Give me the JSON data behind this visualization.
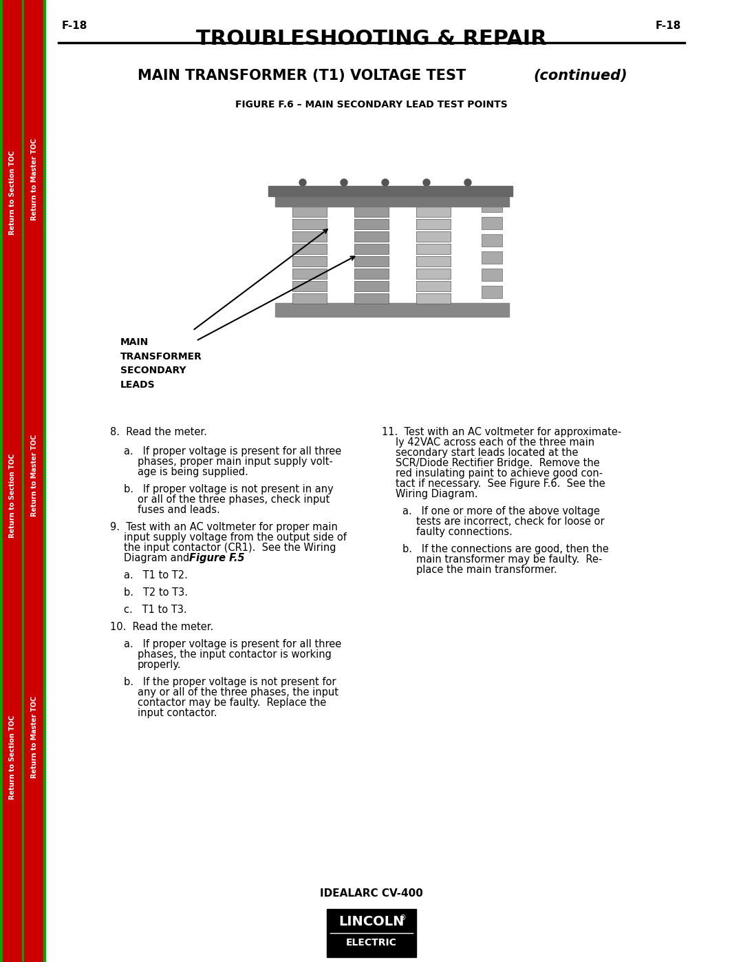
{
  "page_label_left": "F-18",
  "page_label_right": "F-18",
  "header_title": "TROUBLESHOOTING & REPAIR",
  "section_title": "MAIN TRANSFORMER (T1) VOLTAGE TEST",
  "section_title_italic": "(continued)",
  "figure_caption": "FIGURE F.6 – MAIN SECONDARY LEAD TEST POINTS",
  "label_main": "MAIN\nTRANSFORMER\nSECONDARY\nLEADS",
  "sidebar_left1": "Return to Section TOC",
  "sidebar_left2": "Return to Master TOC",
  "sidebar_left3": "Return to Section TOC",
  "sidebar_left4": "Return to Master TOC",
  "sidebar_left5": "Return to Section TOC",
  "sidebar_left6": "Return to Master TOC",
  "sidebar_color": "#cc0000",
  "sidebar_line_color": "#00aa00",
  "bg_color": "#ffffff",
  "text_color": "#000000",
  "body_text_left": [
    "8.  Read the meter.",
    "        a.   If proper voltage is present for all three\n              phases, proper main input supply volt-\n              age is being supplied.",
    "        b.   If proper voltage is not present in any\n              or all of the three phases, check input\n              fuses and leads.",
    "9.  Test with an AC voltmeter for proper main\n     input supply voltage from the output side of\n     the input contactor (CR1).  See the Wiring\n     Diagram and Figure F.5.",
    "        a.   T1 to T2.",
    "        b.   T2 to T3.",
    "        c.   T1 to T3.",
    "10.  Read the meter.",
    "        a.   If proper voltage is present for all three\n              phases, the input contactor is working\n              properly.",
    "        b.   If the proper voltage is not present for\n              any or all of the three phases, the input\n              contactor may be faulty.  Replace the\n              input contactor."
  ],
  "body_text_right": [
    "11.  Test with an AC voltmeter for approximate-\n       ly 42VAC across each of the three main\n       secondary start leads located at the\n       SCR/Diode Rectifier Bridge.  Remove the\n       red insulating paint to achieve good con-\n       tact if necessary.  See Figure F.6.  See the\n       Wiring Diagram.",
    "        a.   If one or more of the above voltage\n              tests are incorrect, check for loose or\n              faulty connections.",
    "        b.   If the connections are good, then the\n              main transformer may be faulty.  Re-\n              place the main transformer."
  ],
  "footer_model": "IDEALARC CV-400",
  "lincoln_logo_text1": "LINCOLN",
  "lincoln_logo_text2": "ELECTRIC",
  "figure_f5_bold": "Figure F.5"
}
